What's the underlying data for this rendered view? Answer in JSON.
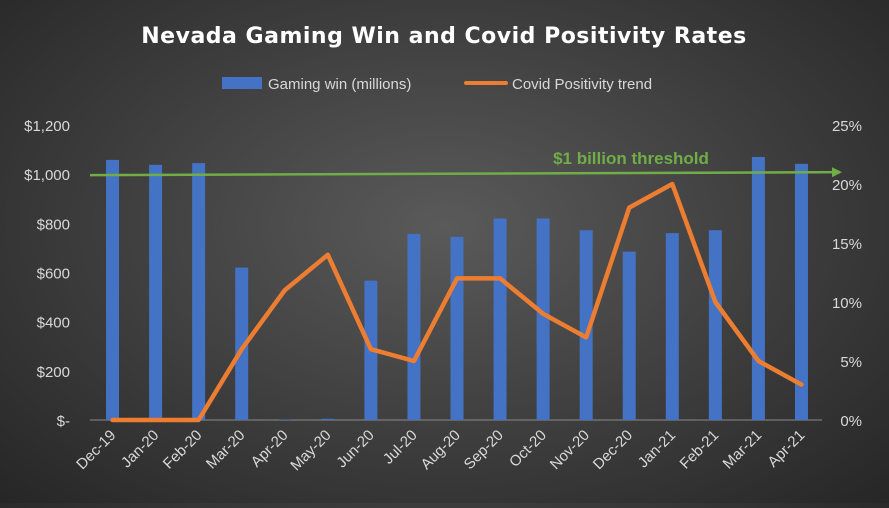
{
  "chart_data": {
    "type": "bar",
    "title": "Nevada Gaming Win and Covid Positivity Rates",
    "categories": [
      "Dec-19",
      "Jan-20",
      "Feb-20",
      "Mar-20",
      "Apr-20",
      "May-20",
      "Jun-20",
      "Jul-20",
      "Aug-20",
      "Sep-20",
      "Oct-20",
      "Nov-20",
      "Dec-20",
      "Jan-21",
      "Feb-21",
      "Mar-21",
      "Apr-21"
    ],
    "series": [
      {
        "name": "Gaming win (millions)",
        "type": "bar",
        "axis": "left",
        "color": "#4472c4",
        "values": [
          1058,
          1038,
          1045,
          620,
          2,
          5,
          567,
          757,
          745,
          820,
          820,
          772,
          685,
          760,
          772,
          1070,
          1042
        ]
      },
      {
        "name": "Covid Positivity trend",
        "type": "line",
        "axis": "right",
        "color": "#ed7d31",
        "values": [
          0,
          0,
          0,
          6,
          11,
          14,
          6,
          5,
          12,
          12,
          9,
          7,
          18,
          20,
          10,
          5,
          3
        ]
      }
    ],
    "y_left": {
      "ylim": [
        0,
        1200
      ],
      "ticks": [
        0,
        200,
        400,
        600,
        800,
        1000,
        1200
      ],
      "tick_labels": [
        "$-",
        "$200",
        "$400",
        "$600",
        "$800",
        "$1,000",
        "$1,200"
      ]
    },
    "y_right": {
      "ylim": [
        0,
        25
      ],
      "ticks": [
        0,
        5,
        10,
        15,
        20,
        25
      ],
      "tick_labels": [
        "0%",
        "5%",
        "10%",
        "15%",
        "20%",
        "25%"
      ]
    },
    "threshold": {
      "label": "$1 billion  threshold",
      "value": 1000,
      "color": "#70ad47"
    },
    "legend_position": "top-center",
    "grid": false
  }
}
